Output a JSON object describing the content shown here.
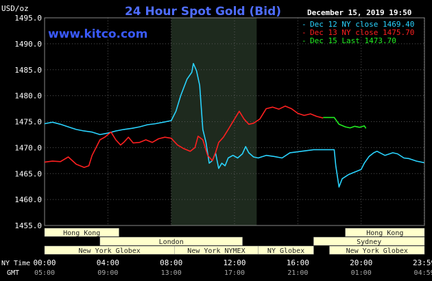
{
  "header": {
    "title": "24 Hour Spot Gold (Bid)",
    "datetime": "December 15, 2019 19:50",
    "units": "USD/oz",
    "watermark": "www.kitco.com"
  },
  "legend": [
    {
      "label": "Dec 12 NY close 1469.40",
      "color": "#2ad4ff"
    },
    {
      "label": "Dec 13 NY close 1475.70",
      "color": "#ff2020"
    },
    {
      "label": "Dec 15 Last 1473.70",
      "color": "#22ee22"
    }
  ],
  "axis_labels": {
    "ny_time": "NY Time",
    "gmt": "GMT"
  },
  "x_ticks": [
    {
      "label": "00:00",
      "gmt": "05:00",
      "hour": 0
    },
    {
      "label": "04:00",
      "gmt": "09:00",
      "hour": 4
    },
    {
      "label": "08:00",
      "gmt": "13:00",
      "hour": 8
    },
    {
      "label": "12:00",
      "gmt": "17:00",
      "hour": 12
    },
    {
      "label": "16:00",
      "gmt": "21:00",
      "hour": 16
    },
    {
      "label": "20:00",
      "gmt": "01:00",
      "hour": 20
    },
    {
      "label": "23:59",
      "gmt": "04:59",
      "hour": 23.983
    }
  ],
  "sessions": [
    {
      "label": "Hong Kong",
      "start": 0,
      "end": 4.7,
      "row": 0
    },
    {
      "label": "London",
      "start": 3.5,
      "end": 12.5,
      "row": 1
    },
    {
      "label": "New York Globex",
      "start": 0,
      "end": 8.2,
      "row": 2
    },
    {
      "label": "New York NYMEX",
      "start": 8.2,
      "end": 13.5,
      "row": 2
    },
    {
      "label": "NY Globex",
      "start": 13.5,
      "end": 17.0,
      "row": 2
    },
    {
      "label": "Sydney",
      "start": 17.0,
      "end": 24.0,
      "row": 1
    },
    {
      "label": "Hong Kong",
      "start": 19.0,
      "end": 24.0,
      "row": 0
    },
    {
      "label": "New York Globex",
      "start": 18.0,
      "end": 24.0,
      "row": 2
    }
  ],
  "colors": {
    "background": "#000000",
    "plot_background": "#000000",
    "highlight": "#1e2a1e",
    "grid": "#555555",
    "axis_text": "#ffffff",
    "title": "#4f6dff",
    "session_fill": "#ffffcc",
    "session_text": "#222222"
  },
  "chart_data": {
    "type": "line",
    "xlabel": "NY Time",
    "ylabel": "USD/oz",
    "xlim": [
      0,
      24
    ],
    "ylim": [
      1455,
      1495
    ],
    "y_ticks": [
      1455,
      1460,
      1465,
      1470,
      1475,
      1480,
      1485,
      1490,
      1495
    ],
    "highlight_range": [
      8.0,
      13.4
    ],
    "series": [
      {
        "name": "Dec 12 NY close 1469.40",
        "color": "#2ad4ff",
        "points": [
          [
            0.0,
            1474.6
          ],
          [
            0.5,
            1474.9
          ],
          [
            1.0,
            1474.5
          ],
          [
            1.5,
            1474.0
          ],
          [
            2.0,
            1473.5
          ],
          [
            2.5,
            1473.2
          ],
          [
            3.0,
            1473.0
          ],
          [
            3.5,
            1472.5
          ],
          [
            4.0,
            1472.8
          ],
          [
            4.5,
            1473.2
          ],
          [
            5.0,
            1473.5
          ],
          [
            5.5,
            1473.7
          ],
          [
            6.0,
            1474.0
          ],
          [
            6.5,
            1474.4
          ],
          [
            7.0,
            1474.6
          ],
          [
            7.5,
            1474.9
          ],
          [
            8.0,
            1475.2
          ],
          [
            8.3,
            1477.0
          ],
          [
            8.6,
            1480.0
          ],
          [
            9.0,
            1483.2
          ],
          [
            9.3,
            1484.5
          ],
          [
            9.4,
            1486.2
          ],
          [
            9.6,
            1484.8
          ],
          [
            9.8,
            1482.0
          ],
          [
            10.0,
            1473.5
          ],
          [
            10.2,
            1471.0
          ],
          [
            10.4,
            1467.0
          ],
          [
            10.6,
            1467.5
          ],
          [
            10.8,
            1469.0
          ],
          [
            11.0,
            1466.0
          ],
          [
            11.2,
            1467.0
          ],
          [
            11.4,
            1466.5
          ],
          [
            11.6,
            1468.0
          ],
          [
            11.9,
            1468.5
          ],
          [
            12.2,
            1468.0
          ],
          [
            12.5,
            1468.8
          ],
          [
            12.7,
            1470.2
          ],
          [
            12.9,
            1469.0
          ],
          [
            13.2,
            1468.2
          ],
          [
            13.5,
            1468.0
          ],
          [
            14.0,
            1468.5
          ],
          [
            14.5,
            1468.3
          ],
          [
            15.0,
            1468.0
          ],
          [
            15.5,
            1469.0
          ],
          [
            16.0,
            1469.2
          ],
          [
            16.5,
            1469.4
          ],
          [
            17.0,
            1469.6
          ],
          [
            17.5,
            1469.6
          ],
          [
            18.0,
            1469.6
          ],
          [
            18.3,
            1469.6
          ],
          [
            18.4,
            1466.5
          ],
          [
            18.6,
            1462.4
          ],
          [
            18.8,
            1464.0
          ],
          [
            19.2,
            1464.8
          ],
          [
            19.6,
            1465.3
          ],
          [
            20.0,
            1465.8
          ],
          [
            20.2,
            1467.0
          ],
          [
            20.5,
            1468.3
          ],
          [
            20.8,
            1469.0
          ],
          [
            21.0,
            1469.3
          ],
          [
            21.5,
            1468.5
          ],
          [
            22.0,
            1469.0
          ],
          [
            22.3,
            1468.8
          ],
          [
            22.7,
            1468.0
          ],
          [
            23.0,
            1467.9
          ],
          [
            23.5,
            1467.4
          ],
          [
            23.98,
            1467.1
          ]
        ]
      },
      {
        "name": "Dec 13 NY close 1475.70",
        "color": "#ff2020",
        "points": [
          [
            0.0,
            1467.2
          ],
          [
            0.5,
            1467.4
          ],
          [
            1.0,
            1467.3
          ],
          [
            1.5,
            1468.2
          ],
          [
            2.0,
            1466.8
          ],
          [
            2.5,
            1466.2
          ],
          [
            2.8,
            1466.5
          ],
          [
            3.0,
            1468.5
          ],
          [
            3.5,
            1471.5
          ],
          [
            3.8,
            1472.0
          ],
          [
            4.0,
            1472.5
          ],
          [
            4.2,
            1473.0
          ],
          [
            4.5,
            1471.5
          ],
          [
            4.8,
            1470.5
          ],
          [
            5.0,
            1471.0
          ],
          [
            5.3,
            1472.0
          ],
          [
            5.6,
            1470.9
          ],
          [
            6.0,
            1471.0
          ],
          [
            6.4,
            1471.5
          ],
          [
            6.8,
            1471.0
          ],
          [
            7.2,
            1471.7
          ],
          [
            7.6,
            1472.0
          ],
          [
            8.0,
            1471.8
          ],
          [
            8.4,
            1470.5
          ],
          [
            8.8,
            1469.8
          ],
          [
            9.2,
            1469.3
          ],
          [
            9.5,
            1470.0
          ],
          [
            9.7,
            1472.2
          ],
          [
            10.0,
            1471.5
          ],
          [
            10.3,
            1468.5
          ],
          [
            10.6,
            1467.5
          ],
          [
            10.8,
            1469.0
          ],
          [
            11.0,
            1471.0
          ],
          [
            11.3,
            1472.0
          ],
          [
            11.6,
            1473.5
          ],
          [
            12.0,
            1475.5
          ],
          [
            12.3,
            1477.0
          ],
          [
            12.6,
            1475.5
          ],
          [
            12.9,
            1474.5
          ],
          [
            13.2,
            1474.7
          ],
          [
            13.6,
            1475.5
          ],
          [
            14.0,
            1477.5
          ],
          [
            14.4,
            1477.8
          ],
          [
            14.8,
            1477.4
          ],
          [
            15.2,
            1478.0
          ],
          [
            15.6,
            1477.5
          ],
          [
            16.0,
            1476.6
          ],
          [
            16.4,
            1476.2
          ],
          [
            16.8,
            1476.5
          ],
          [
            17.2,
            1476.0
          ],
          [
            17.6,
            1475.7
          ]
        ]
      },
      {
        "name": "Dec 15 Last 1473.70",
        "color": "#22ee22",
        "points": [
          [
            17.6,
            1475.8
          ],
          [
            18.0,
            1475.8
          ],
          [
            18.3,
            1475.8
          ],
          [
            18.6,
            1474.5
          ],
          [
            19.0,
            1474.0
          ],
          [
            19.3,
            1473.8
          ],
          [
            19.6,
            1474.1
          ],
          [
            19.9,
            1473.9
          ],
          [
            20.2,
            1474.2
          ],
          [
            20.3,
            1473.7
          ]
        ]
      }
    ]
  }
}
